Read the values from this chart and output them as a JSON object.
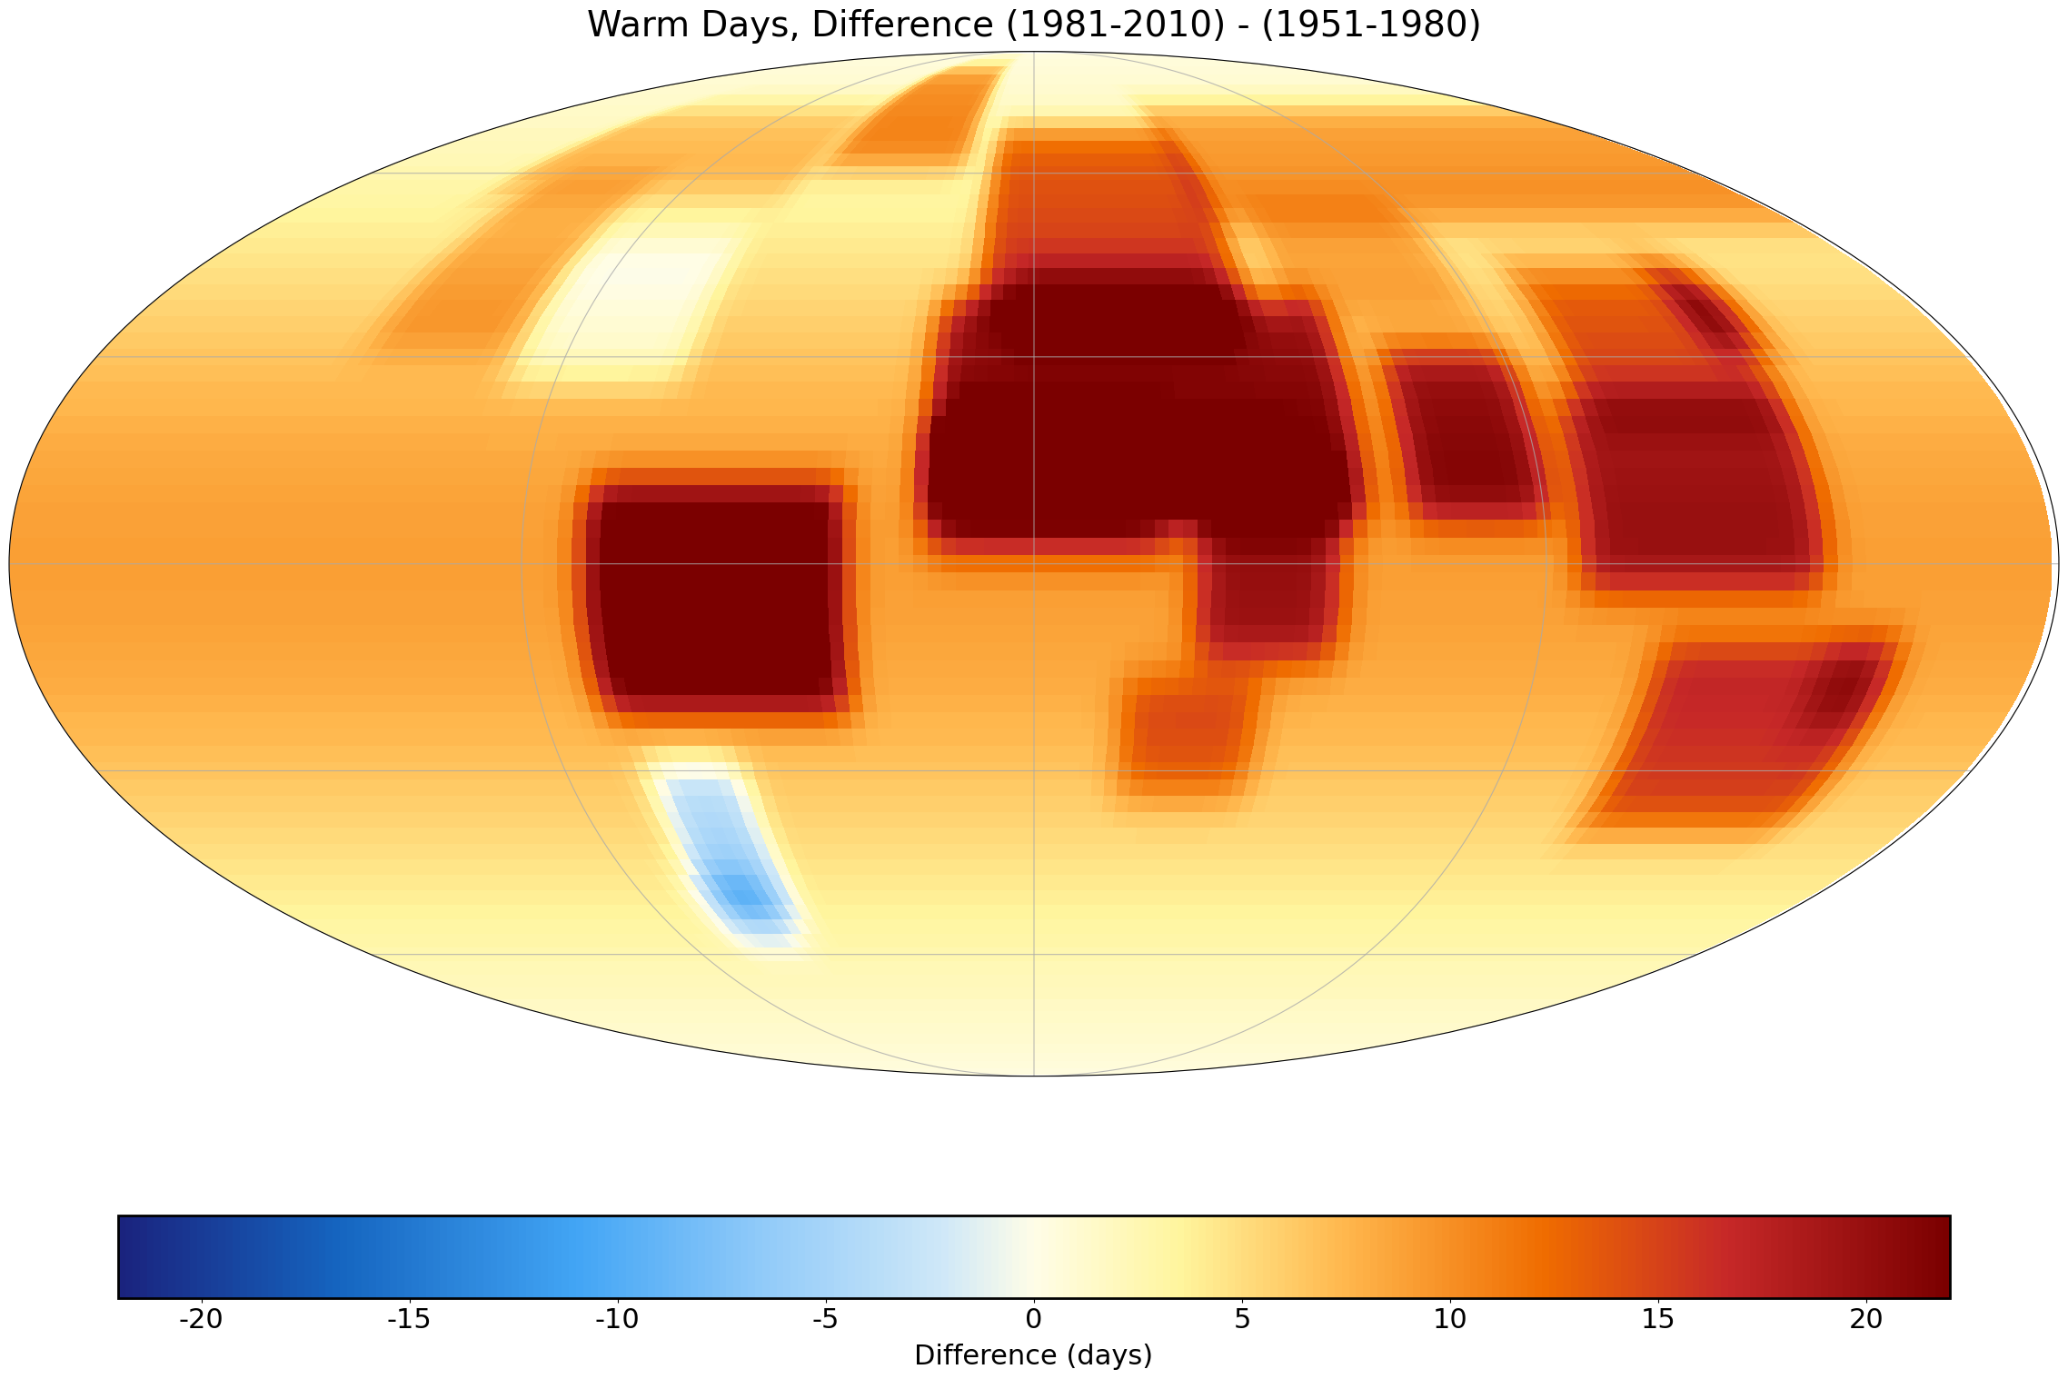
{
  "title": "Warm Days, Difference (1981-2010) - (1951-1980)",
  "colorbar_label": "Difference (days)",
  "colorbar_ticks": [
    -20,
    -15,
    -10,
    -5,
    0,
    5,
    10,
    15,
    20
  ],
  "vmin": -22,
  "vmax": 22,
  "ocean_color": "#ffffff",
  "land_nodata_color": "#c8c8c8",
  "grid_color": "#aaaaaa",
  "coast_color": "#000000",
  "title_fontsize": 28,
  "colorbar_fontsize": 22,
  "background_color": "#ffffff",
  "colormap_nodes": [
    [
      0.0,
      "#1a237e"
    ],
    [
      0.12,
      "#1565c0"
    ],
    [
      0.25,
      "#42a5f5"
    ],
    [
      0.35,
      "#90caf9"
    ],
    [
      0.45,
      "#cfe8f8"
    ],
    [
      0.5,
      "#fffde7"
    ],
    [
      0.58,
      "#fff59d"
    ],
    [
      0.67,
      "#ffb74d"
    ],
    [
      0.78,
      "#ef6c00"
    ],
    [
      0.88,
      "#c62828"
    ],
    [
      1.0,
      "#7b0000"
    ]
  ]
}
